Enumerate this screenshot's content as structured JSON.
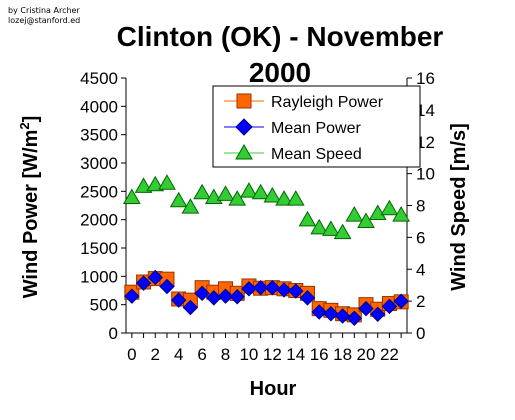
{
  "credit": {
    "line1": "by Cristina Archer",
    "line2": "lozej@stanford.ed"
  },
  "chart_data": {
    "type": "line",
    "title": "Clinton (OK) - November 2000",
    "title_lines": [
      "Clinton (OK) - November",
      "2000"
    ],
    "xlabel": "Hour",
    "ylabel_left": {
      "text": "Wind Power [W/m",
      "sup": "2",
      "tail": "]"
    },
    "ylabel_right": "Wind Speed [m/s]",
    "x": [
      0,
      1,
      2,
      3,
      4,
      5,
      6,
      7,
      8,
      9,
      10,
      11,
      12,
      13,
      14,
      15,
      16,
      17,
      18,
      19,
      20,
      21,
      22,
      23
    ],
    "xlim": [
      -0.5,
      23.5
    ],
    "x_ticks": [
      "0",
      "2",
      "4",
      "6",
      "8",
      "10",
      "12",
      "14",
      "16",
      "18",
      "20",
      "22"
    ],
    "ylim_left": [
      0,
      4500
    ],
    "ylim_left_ticks": [
      "0",
      "500",
      "1000",
      "1500",
      "2000",
      "2500",
      "3000",
      "3500",
      "4000",
      "4500"
    ],
    "ylim_right": [
      0,
      16
    ],
    "ylim_right_ticks": [
      "0",
      "2",
      "4",
      "6",
      "8",
      "10",
      "12",
      "14",
      "16"
    ],
    "grid": false,
    "legend_placement": "top-right",
    "series": [
      {
        "name": "Rayleigh Power",
        "axis": "left",
        "marker": "square",
        "color": "#ff6600",
        "edge": "#993300",
        "values": [
          720,
          900,
          960,
          950,
          600,
          580,
          800,
          720,
          780,
          700,
          830,
          790,
          800,
          780,
          750,
          700,
          430,
          400,
          340,
          320,
          500,
          420,
          520,
          550
        ]
      },
      {
        "name": "Mean Power",
        "axis": "left",
        "marker": "diamond",
        "color": "#0000ff",
        "edge": "#000080",
        "values": [
          650,
          880,
          980,
          820,
          580,
          450,
          700,
          620,
          650,
          640,
          780,
          800,
          800,
          760,
          740,
          620,
          370,
          340,
          300,
          260,
          430,
          330,
          470,
          560
        ]
      },
      {
        "name": "Mean Speed",
        "axis": "right",
        "marker": "triangle",
        "color": "#33cc33",
        "edge": "#006600",
        "values": [
          8.5,
          9.2,
          9.3,
          9.4,
          8.3,
          7.9,
          8.8,
          8.5,
          8.7,
          8.4,
          8.9,
          8.8,
          8.6,
          8.4,
          8.4,
          7.1,
          6.6,
          6.5,
          6.3,
          7.4,
          7.0,
          7.5,
          7.8,
          7.4
        ]
      }
    ]
  }
}
